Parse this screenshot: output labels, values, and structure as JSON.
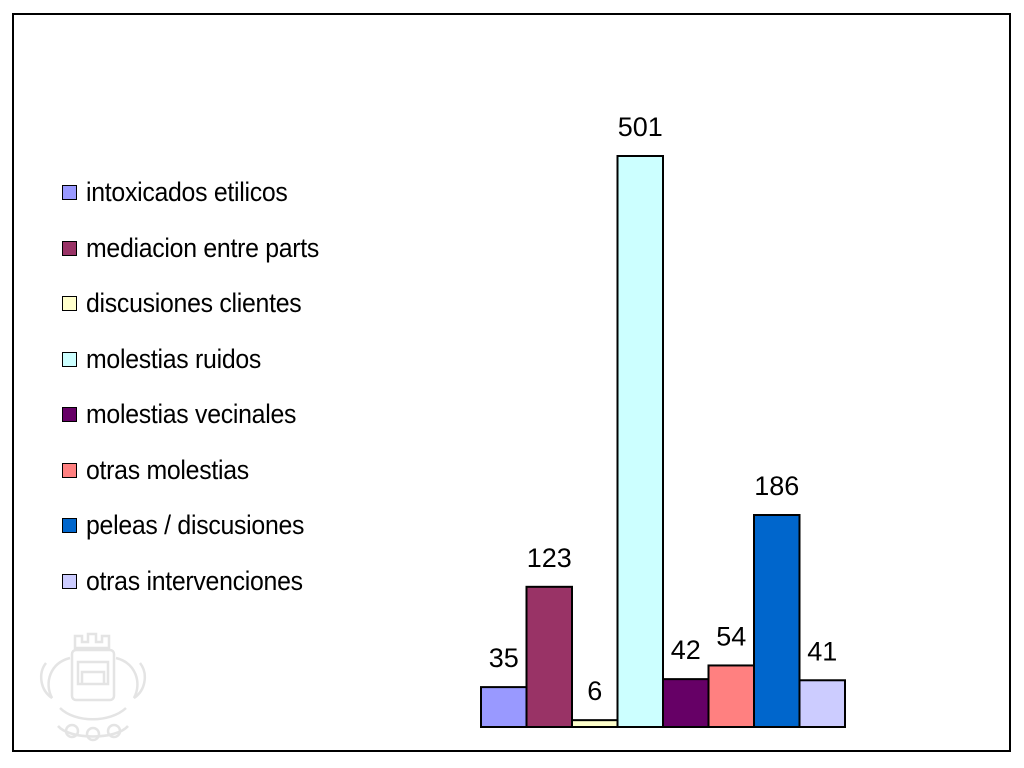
{
  "chart_data": {
    "type": "bar",
    "title": "",
    "xlabel": "",
    "ylabel": "",
    "ylim": [
      0,
      501
    ],
    "grid": false,
    "legend_position": "left",
    "data_labels": true,
    "series": [
      {
        "name": "intoxicados etilicos",
        "value": 35,
        "label": "35",
        "color": "#9999FF"
      },
      {
        "name": "mediacion entre parts",
        "value": 123,
        "label": "123",
        "color": "#993366"
      },
      {
        "name": "discusiones clientes",
        "value": 6,
        "label": "6",
        "color": "#FFFFCC"
      },
      {
        "name": "molestias ruidos",
        "value": 501,
        "label": "501",
        "color": "#CCFFFF"
      },
      {
        "name": "molestias vecinales",
        "value": 42,
        "label": "42",
        "color": "#660066"
      },
      {
        "name": "otras molestias",
        "value": 54,
        "label": "54",
        "color": "#FF8080"
      },
      {
        "name": "peleas / discusiones",
        "value": 186,
        "label": "186",
        "color": "#0066CC"
      },
      {
        "name": "otras intervenciones",
        "value": 41,
        "label": "41",
        "color": "#CCCCFF"
      }
    ]
  },
  "watermark": {
    "icon": "municipal-coat-of-arms-watermark",
    "color": "#e6e6e6"
  }
}
